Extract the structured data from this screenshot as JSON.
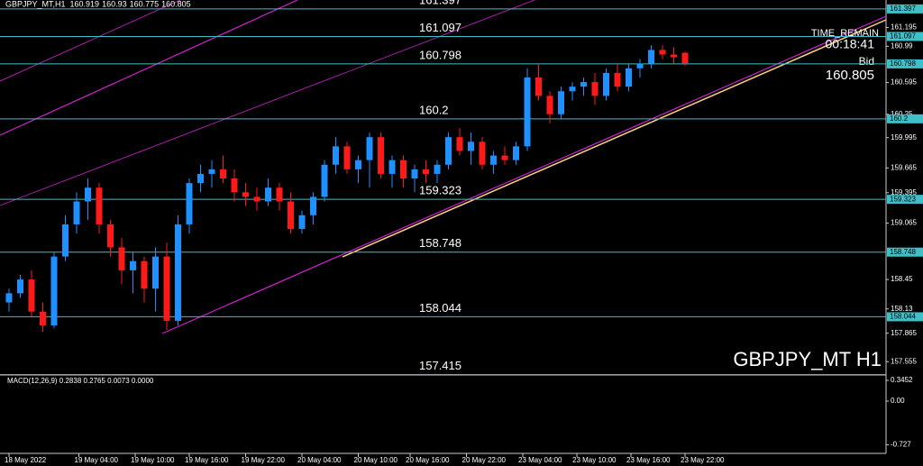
{
  "chart_data": {
    "type": "candlestick",
    "title": "GBPJPY_MT,H1",
    "watermark": "GBPJPY_MT H1",
    "timer_label": "TIME_REMAIN",
    "timer": "00:18:41",
    "bid_label": "Bid",
    "up_color": "#1e90ff",
    "down_color": "#ff1a1a",
    "ylim": [
      157.42,
      161.494
    ],
    "yticks": [
      161.195,
      160.99,
      160.595,
      160.25,
      159.995,
      159.665,
      159.395,
      159.065,
      158.45,
      158.13,
      157.865,
      157.555
    ],
    "levels": [
      161.397,
      161.097,
      160.798,
      160.2,
      159.323,
      158.748,
      158.044,
      157.415
    ],
    "level_color": "#3fc0c8",
    "xticks": [
      {
        "value": 0,
        "label": "18 May 2022"
      },
      {
        "value": 6.2,
        "label": "19 May 04:00"
      },
      {
        "value": 11.2,
        "label": "19 May 10:00"
      },
      {
        "value": 16,
        "label": "19 May 16:00"
      },
      {
        "value": 21,
        "label": "19 May 22:00"
      },
      {
        "value": 26,
        "label": "20 May 04:00"
      },
      {
        "value": 31,
        "label": "20 May 10:00"
      },
      {
        "value": 35.6,
        "label": "20 May 16:00"
      },
      {
        "value": 40.6,
        "label": "20 May 22:00"
      },
      {
        "value": 45.6,
        "label": "23 May 04:00"
      },
      {
        "value": 50.4,
        "label": "23 May 10:00"
      },
      {
        "value": 55.2,
        "label": "23 May 16:00"
      },
      {
        "value": 60,
        "label": "23 May 22:00"
      }
    ],
    "candles": [
      [
        158.2,
        158.35,
        158.1,
        158.3
      ],
      [
        158.3,
        158.5,
        158.25,
        158.45
      ],
      [
        158.45,
        158.55,
        158.05,
        158.1
      ],
      [
        158.1,
        158.2,
        157.88,
        157.95
      ],
      [
        157.95,
        158.75,
        157.92,
        158.7
      ],
      [
        158.7,
        159.15,
        158.65,
        159.05
      ],
      [
        159.05,
        159.4,
        158.95,
        159.3
      ],
      [
        159.3,
        159.55,
        159.1,
        159.45
      ],
      [
        159.45,
        159.5,
        158.95,
        159.05
      ],
      [
        159.05,
        159.1,
        158.7,
        158.8
      ],
      [
        158.8,
        158.9,
        158.4,
        158.55
      ],
      [
        158.55,
        158.75,
        158.3,
        158.65
      ],
      [
        158.65,
        158.7,
        158.2,
        158.35
      ],
      [
        158.35,
        158.8,
        158.1,
        158.7
      ],
      [
        158.7,
        158.85,
        157.9,
        158.0
      ],
      [
        158.0,
        159.15,
        157.95,
        159.05
      ],
      [
        159.05,
        159.55,
        158.95,
        159.5
      ],
      [
        159.5,
        159.7,
        159.4,
        159.6
      ],
      [
        159.6,
        159.75,
        159.45,
        159.65
      ],
      [
        159.65,
        159.8,
        159.5,
        159.55
      ],
      [
        159.55,
        159.65,
        159.3,
        159.4
      ],
      [
        159.4,
        159.5,
        159.25,
        159.35
      ],
      [
        159.35,
        159.45,
        159.2,
        159.3
      ],
      [
        159.3,
        159.55,
        159.25,
        159.45
      ],
      [
        159.45,
        159.5,
        159.2,
        159.3
      ],
      [
        159.3,
        159.4,
        158.95,
        159.0
      ],
      [
        159.0,
        159.2,
        158.95,
        159.15
      ],
      [
        159.15,
        159.4,
        159.05,
        159.35
      ],
      [
        159.35,
        159.75,
        159.3,
        159.7
      ],
      [
        159.7,
        160.0,
        159.6,
        159.9
      ],
      [
        159.9,
        159.95,
        159.6,
        159.65
      ],
      [
        159.65,
        159.8,
        159.5,
        159.75
      ],
      [
        159.75,
        160.05,
        159.45,
        160.0
      ],
      [
        160.0,
        160.05,
        159.55,
        159.6
      ],
      [
        159.6,
        159.8,
        159.45,
        159.75
      ],
      [
        159.75,
        159.8,
        159.45,
        159.55
      ],
      [
        159.55,
        159.7,
        159.4,
        159.65
      ],
      [
        159.65,
        159.75,
        159.5,
        159.6
      ],
      [
        159.6,
        159.75,
        159.5,
        159.7
      ],
      [
        159.7,
        160.05,
        159.65,
        160.0
      ],
      [
        160.0,
        160.1,
        159.8,
        159.85
      ],
      [
        159.85,
        160.05,
        159.7,
        159.95
      ],
      [
        159.95,
        160.0,
        159.65,
        159.7
      ],
      [
        159.7,
        159.85,
        159.6,
        159.8
      ],
      [
        159.8,
        159.9,
        159.7,
        159.75
      ],
      [
        159.75,
        159.95,
        159.7,
        159.9
      ],
      [
        159.9,
        160.75,
        159.85,
        160.65
      ],
      [
        160.65,
        160.8,
        160.4,
        160.45
      ],
      [
        160.45,
        160.5,
        160.15,
        160.25
      ],
      [
        160.25,
        160.55,
        160.2,
        160.5
      ],
      [
        160.5,
        160.6,
        160.4,
        160.55
      ],
      [
        160.55,
        160.65,
        160.45,
        160.6
      ],
      [
        160.6,
        160.7,
        160.35,
        160.45
      ],
      [
        160.45,
        160.75,
        160.4,
        160.7
      ],
      [
        160.7,
        160.8,
        160.5,
        160.55
      ],
      [
        160.55,
        160.8,
        160.5,
        160.75
      ],
      [
        160.75,
        160.85,
        160.65,
        160.8
      ],
      [
        160.8,
        161.0,
        160.75,
        160.95
      ],
      [
        160.95,
        161.0,
        160.85,
        160.9
      ],
      [
        160.9,
        160.98,
        160.8,
        160.87
      ],
      [
        160.919,
        160.93,
        160.775,
        160.805
      ]
    ],
    "macd": {
      "label": "MACD(12,26,9) 0.2838 0.2765 0.0073 0.0000",
      "ylim": [
        -0.87,
        0.42
      ],
      "yticks": [
        {
          "value": 0.3452,
          "label": "0.3452"
        },
        {
          "value": 0,
          "label": "0.00"
        },
        {
          "value": -0.727,
          "label": "-0.727"
        }
      ]
    }
  }
}
